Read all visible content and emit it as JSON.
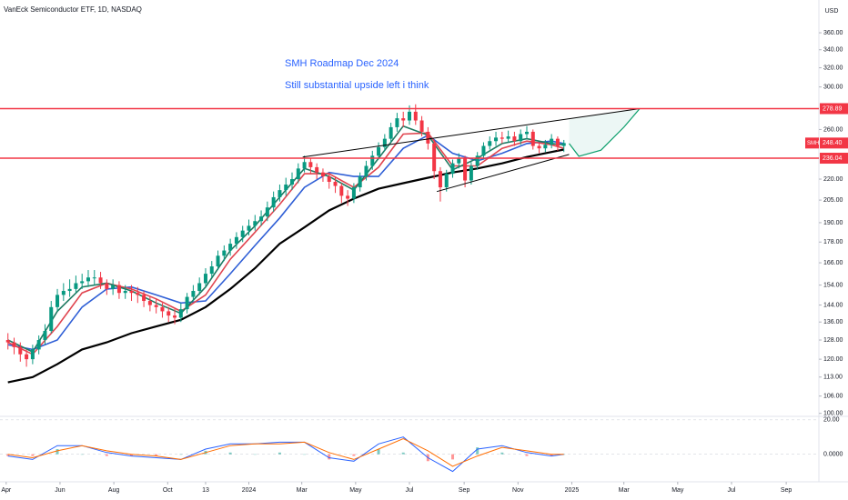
{
  "chart_data": {
    "type": "candlestick",
    "title": "VanEck Semiconductor ETF, 1D, NASDAQ",
    "currency": "USD",
    "symbol": "SMH",
    "log_scale": true,
    "up_color": "#089981",
    "down_color": "#f23645",
    "x": [
      "2023-04-03",
      "2023-04-10",
      "2023-04-17",
      "2023-04-24",
      "2023-05-01",
      "2023-05-08",
      "2023-05-15",
      "2023-05-22",
      "2023-05-29",
      "2023-06-05",
      "2023-06-12",
      "2023-06-19",
      "2023-06-26",
      "2023-07-03",
      "2023-07-10",
      "2023-07-17",
      "2023-07-24",
      "2023-07-31",
      "2023-08-07",
      "2023-08-14",
      "2023-08-21",
      "2023-08-28",
      "2023-09-04",
      "2023-09-11",
      "2023-09-18",
      "2023-09-25",
      "2023-10-02",
      "2023-10-09",
      "2023-10-16",
      "2023-10-23",
      "2023-10-30",
      "2023-11-06",
      "2023-11-13",
      "2023-11-20",
      "2023-11-27",
      "2023-12-04",
      "2023-12-11",
      "2023-12-18",
      "2023-12-25",
      "2024-01-01",
      "2024-01-08",
      "2024-01-15",
      "2024-01-22",
      "2024-01-29",
      "2024-02-05",
      "2024-02-12",
      "2024-02-19",
      "2024-02-26",
      "2024-03-04",
      "2024-03-11",
      "2024-03-18",
      "2024-03-25",
      "2024-04-01",
      "2024-04-08",
      "2024-04-15",
      "2024-04-22",
      "2024-04-29",
      "2024-05-06",
      "2024-05-13",
      "2024-05-20",
      "2024-05-27",
      "2024-06-03",
      "2024-06-10",
      "2024-06-17",
      "2024-06-24",
      "2024-07-01",
      "2024-07-08",
      "2024-07-15",
      "2024-07-22",
      "2024-07-29",
      "2024-08-05",
      "2024-08-12",
      "2024-08-19",
      "2024-08-26",
      "2024-09-02",
      "2024-09-09",
      "2024-09-16",
      "2024-09-23",
      "2024-09-30",
      "2024-10-07",
      "2024-10-14",
      "2024-10-21",
      "2024-10-28",
      "2024-11-04",
      "2024-11-11",
      "2024-11-18",
      "2024-11-25",
      "2024-12-02",
      "2024-12-09",
      "2024-12-16",
      "2024-12-23"
    ],
    "open": [
      128,
      127,
      125,
      122,
      120,
      124,
      128,
      132,
      143,
      149,
      151,
      152,
      155,
      156,
      158,
      158,
      155,
      152,
      154,
      150,
      151,
      150,
      149,
      146,
      144,
      143,
      141,
      139,
      138,
      142,
      148,
      151,
      155,
      160,
      164,
      170,
      173,
      177,
      181,
      185,
      188,
      191,
      194,
      200,
      207,
      212,
      216,
      220,
      228,
      233,
      229,
      225,
      222,
      218,
      215,
      208,
      206,
      214,
      222,
      230,
      238,
      245,
      252,
      262,
      270,
      268,
      276,
      268,
      258,
      248,
      226,
      214,
      224,
      232,
      236,
      219,
      230,
      238,
      246,
      250,
      253,
      252,
      254,
      250,
      256,
      258,
      246,
      244,
      247,
      252,
      246
    ],
    "high": [
      131,
      129,
      127,
      124,
      126,
      130,
      135,
      146,
      152,
      155,
      157,
      159,
      160,
      162,
      162,
      161,
      157,
      157,
      156,
      154,
      154,
      153,
      151,
      148,
      147,
      145,
      143,
      142,
      145,
      150,
      154,
      158,
      163,
      167,
      173,
      176,
      180,
      184,
      188,
      192,
      195,
      198,
      204,
      211,
      216,
      221,
      225,
      232,
      238,
      236,
      232,
      228,
      225,
      222,
      217,
      212,
      217,
      225,
      234,
      242,
      249,
      256,
      266,
      275,
      276,
      282,
      283,
      272,
      262,
      251,
      229,
      227,
      235,
      240,
      238,
      233,
      241,
      249,
      254,
      258,
      258,
      259,
      258,
      260,
      263,
      260,
      249,
      251,
      256,
      254,
      251
    ],
    "low": [
      124,
      122,
      119,
      117,
      118,
      122,
      126,
      131,
      141,
      146,
      148,
      150,
      152,
      153,
      154,
      152,
      149,
      149,
      147,
      147,
      146,
      145,
      143,
      141,
      140,
      138,
      136,
      135,
      136,
      140,
      146,
      149,
      153,
      158,
      162,
      167,
      170,
      174,
      178,
      182,
      185,
      188,
      191,
      197,
      204,
      208,
      212,
      217,
      225,
      224,
      220,
      218,
      213,
      210,
      203,
      201,
      203,
      211,
      219,
      227,
      235,
      242,
      249,
      258,
      262,
      264,
      264,
      254,
      243,
      220,
      204,
      211,
      221,
      228,
      214,
      216,
      227,
      235,
      243,
      246,
      248,
      249,
      246,
      247,
      252,
      243,
      240,
      241,
      244,
      242,
      241
    ],
    "close": [
      127,
      125,
      122,
      120,
      124,
      128,
      132,
      143,
      149,
      151,
      152,
      155,
      156,
      158,
      158,
      155,
      152,
      154,
      150,
      151,
      150,
      149,
      146,
      144,
      143,
      141,
      139,
      138,
      142,
      148,
      151,
      155,
      160,
      164,
      170,
      173,
      177,
      181,
      185,
      188,
      191,
      194,
      200,
      207,
      212,
      216,
      220,
      228,
      233,
      229,
      225,
      222,
      218,
      215,
      208,
      206,
      214,
      222,
      230,
      238,
      245,
      252,
      262,
      270,
      268,
      276,
      268,
      258,
      248,
      226,
      214,
      224,
      232,
      236,
      219,
      230,
      238,
      246,
      250,
      253,
      252,
      254,
      250,
      256,
      258,
      246,
      244,
      247,
      252,
      246,
      248.4
    ],
    "xlim": [
      "2023-03-25",
      "2025-10-08"
    ],
    "xticks": [
      {
        "value": "2023-04-01",
        "label": "Apr"
      },
      {
        "value": "2023-06-01",
        "label": "Jun"
      },
      {
        "value": "2023-08-01",
        "label": "Aug"
      },
      {
        "value": "2023-10-01",
        "label": "Oct"
      },
      {
        "value": "2023-11-13",
        "label": "13"
      },
      {
        "value": "2024-01-01",
        "label": "2024"
      },
      {
        "value": "2024-03-01",
        "label": "Mar"
      },
      {
        "value": "2024-05-01",
        "label": "May"
      },
      {
        "value": "2024-07-01",
        "label": "Jul"
      },
      {
        "value": "2024-09-01",
        "label": "Sep"
      },
      {
        "value": "2024-11-01",
        "label": "Nov"
      },
      {
        "value": "2025-01-01",
        "label": "2025"
      },
      {
        "value": "2025-03-01",
        "label": "Mar"
      },
      {
        "value": "2025-05-01",
        "label": "May"
      },
      {
        "value": "2025-07-01",
        "label": "Jul"
      },
      {
        "value": "2025-09-01",
        "label": "Sep"
      }
    ],
    "ylim": [
      99,
      402
    ],
    "yticks": [
      {
        "value": 360,
        "label": "360.00"
      },
      {
        "value": 340,
        "label": "340.00"
      },
      {
        "value": 320,
        "label": "320.00"
      },
      {
        "value": 300,
        "label": "300.00"
      },
      {
        "value": 260,
        "label": "260.00"
      },
      {
        "value": 220,
        "label": "220.00"
      },
      {
        "value": 205,
        "label": "205.00"
      },
      {
        "value": 190,
        "label": "190.00"
      },
      {
        "value": 178,
        "label": "178.00"
      },
      {
        "value": 166,
        "label": "166.00"
      },
      {
        "value": 154,
        "label": "154.00"
      },
      {
        "value": 144,
        "label": "144.00"
      },
      {
        "value": 136,
        "label": "136.00"
      },
      {
        "value": 128,
        "label": "128.00"
      },
      {
        "value": 120,
        "label": "120.00"
      },
      {
        "value": 113,
        "label": "113.00"
      },
      {
        "value": 106,
        "label": "106.00"
      },
      {
        "value": 100,
        "label": "100.00"
      }
    ],
    "ma_x": [
      "2023-04-03",
      "2023-05-01",
      "2023-05-29",
      "2023-06-26",
      "2023-07-24",
      "2023-08-21",
      "2023-09-18",
      "2023-10-16",
      "2023-11-13",
      "2023-12-11",
      "2024-01-08",
      "2024-02-05",
      "2024-03-04",
      "2024-04-01",
      "2024-04-29",
      "2024-05-27",
      "2024-06-24",
      "2024-07-22",
      "2024-08-19",
      "2024-09-16",
      "2024-10-14",
      "2024-11-11",
      "2024-12-09",
      "2024-12-23"
    ],
    "moving_averages": [
      {
        "color": "#000000",
        "values": [
          111,
          113,
          118,
          124,
          127,
          131,
          134,
          137,
          143,
          152,
          163,
          177,
          187,
          198,
          206,
          213,
          217,
          221,
          225,
          228,
          232,
          237,
          241,
          243
        ]
      },
      {
        "color": "#2f5fd6",
        "values": [
          126,
          124,
          128,
          143,
          152,
          153,
          149,
          145,
          146,
          160,
          176,
          193,
          214,
          225,
          222,
          222,
          244,
          255,
          240,
          234,
          240,
          248,
          250,
          248
        ]
      },
      {
        "color": "#e0454f",
        "values": [
          127,
          122,
          134,
          150,
          155,
          152,
          147,
          141,
          149,
          168,
          184,
          202,
          224,
          224,
          214,
          229,
          256,
          257,
          230,
          230,
          244,
          250,
          247,
          244
        ]
      },
      {
        "color": "#1f7a62",
        "values": [
          128,
          123,
          141,
          153,
          155,
          151,
          145,
          140,
          153,
          173,
          188,
          207,
          228,
          222,
          212,
          236,
          263,
          255,
          227,
          236,
          248,
          252,
          248,
          247
        ]
      }
    ],
    "price_lines": [
      {
        "value": 278.89,
        "label": "278.89",
        "color": "#f23645"
      },
      {
        "value": 236.04,
        "label": "236.04",
        "color": "#f23645"
      }
    ],
    "last_price": {
      "value": 248.4,
      "label": "248.40",
      "color": "#f23645"
    },
    "trendlines": [
      {
        "color": "#000000",
        "x": [
          "2024-03-02",
          "2025-03-19"
        ],
        "y": [
          237,
          278.89
        ]
      },
      {
        "color": "#000000",
        "x": [
          "2024-08-01",
          "2024-12-29"
        ],
        "y": [
          211,
          239
        ]
      }
    ],
    "projection": {
      "color": "#0b9e6b",
      "fill": "rgba(8,153,129,0.08)",
      "x": [
        "2024-12-29",
        "2025-01-09",
        "2025-02-03",
        "2025-03-01",
        "2025-03-19"
      ],
      "y": [
        248,
        237.6,
        242.5,
        262,
        278.89
      ]
    },
    "annotations": [
      {
        "text": "SMH Roadmap Dec 2024"
      },
      {
        "text": "Still substantial upside left i think"
      }
    ],
    "macd": {
      "ylim": [
        -16,
        22
      ],
      "yticks": [
        {
          "value": 20,
          "label": "20.00"
        },
        {
          "value": 0,
          "label": "0.0000"
        }
      ],
      "x": [
        "2023-04-03",
        "2023-05-01",
        "2023-05-29",
        "2023-06-26",
        "2023-07-24",
        "2023-08-21",
        "2023-09-18",
        "2023-10-16",
        "2023-11-13",
        "2023-12-11",
        "2024-01-08",
        "2024-02-05",
        "2024-03-04",
        "2024-04-01",
        "2024-04-29",
        "2024-05-27",
        "2024-06-24",
        "2024-07-22",
        "2024-08-19",
        "2024-09-16",
        "2024-10-14",
        "2024-11-11",
        "2024-12-09",
        "2024-12-23"
      ],
      "series": [
        {
          "color": "#2962ff",
          "values": [
            -1,
            -3,
            5,
            5,
            1,
            -1,
            -2,
            -3,
            3,
            6,
            6,
            7,
            7,
            -2,
            -4,
            6,
            10,
            -2,
            -10,
            3,
            5,
            1,
            -1,
            0
          ]
        },
        {
          "color": "#ff6d00",
          "values": [
            0,
            -2,
            2,
            5,
            2,
            0,
            -1,
            -3,
            1,
            5,
            6,
            6,
            7,
            1,
            -3,
            3,
            9,
            2,
            -7,
            -1,
            4,
            2,
            0,
            0
          ]
        }
      ],
      "histogram": [
        -1,
        -1,
        3,
        0,
        -1,
        -1,
        -1,
        0,
        2,
        1,
        0,
        1,
        0,
        -3,
        -1,
        3,
        1,
        -4,
        -3,
        4,
        1,
        -1,
        -1,
        0
      ],
      "up_color": "#26a69a",
      "down_color": "#ff5252"
    }
  }
}
